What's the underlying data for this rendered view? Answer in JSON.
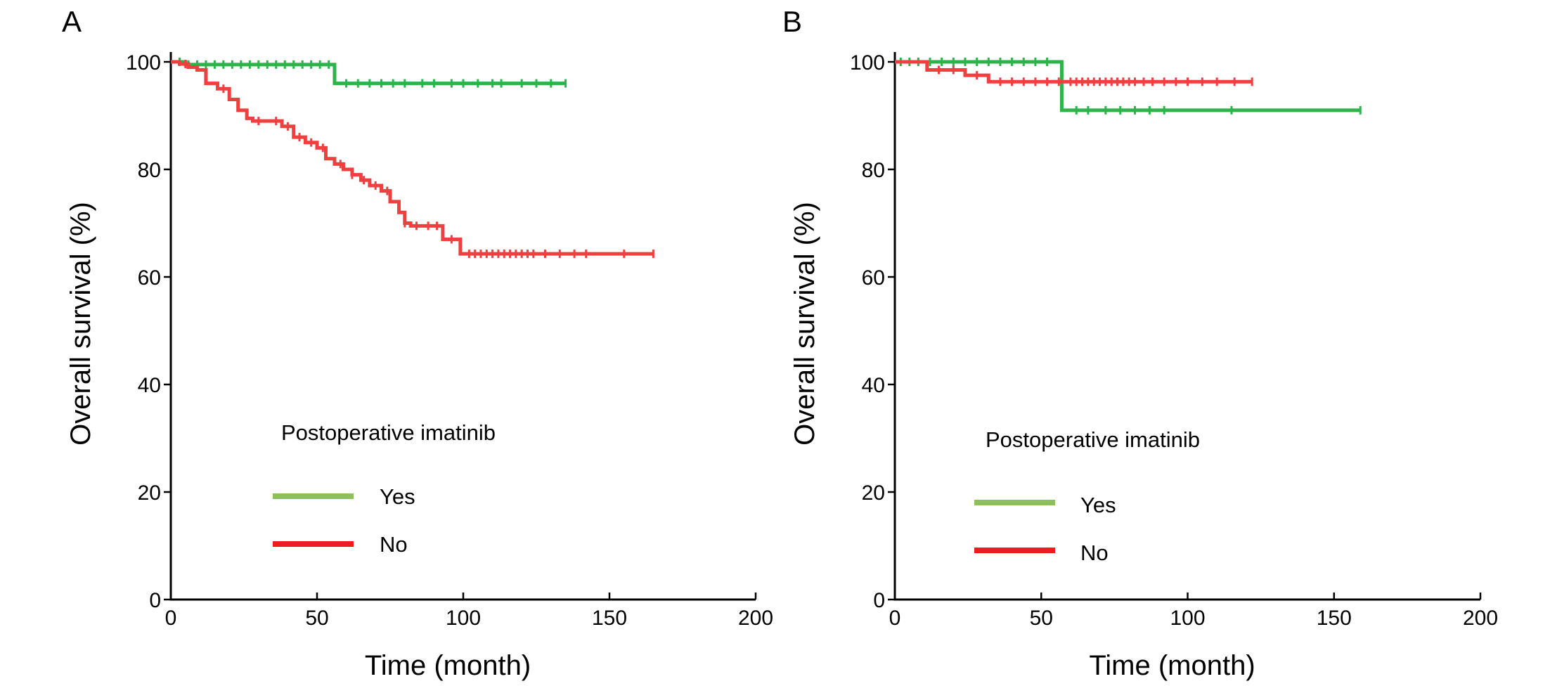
{
  "chart_data": [
    {
      "type": "line",
      "panel_label": "A",
      "xlabel": "Time (month)",
      "ylabel": "Overall survival (%)",
      "xlim": [
        0,
        200
      ],
      "ylim": [
        0,
        100
      ],
      "xticks": [
        0,
        50,
        100,
        150,
        200
      ],
      "yticks": [
        0,
        20,
        40,
        60,
        80,
        100
      ],
      "legend": {
        "title": "Postoperative imatinib",
        "placement": "center-left"
      },
      "series": [
        {
          "name": "Yes",
          "color": "#2db34a",
          "legend_color": "#8dbf5a",
          "steps": [
            [
              0,
              100
            ],
            [
              5,
              99.5
            ],
            [
              56,
              99.3
            ],
            [
              56,
              96
            ],
            [
              135,
              96
            ]
          ],
          "censor": [
            3,
            6,
            9,
            12,
            15,
            18,
            21,
            24,
            27,
            30,
            33,
            36,
            39,
            42,
            45,
            48,
            51,
            54,
            60,
            64,
            68,
            72,
            76,
            80,
            86,
            90,
            96,
            100,
            105,
            110,
            113,
            120,
            125,
            130,
            135
          ]
        },
        {
          "name": "No",
          "color": "#ef3f3f",
          "legend_color": "#ee1c1c",
          "steps": [
            [
              0,
              100
            ],
            [
              3,
              99.6
            ],
            [
              6,
              99
            ],
            [
              9,
              98.5
            ],
            [
              12,
              96
            ],
            [
              16,
              95
            ],
            [
              20,
              93
            ],
            [
              23,
              91
            ],
            [
              26,
              89.5
            ],
            [
              28,
              89
            ],
            [
              34,
              89
            ],
            [
              38,
              88
            ],
            [
              42,
              86
            ],
            [
              46,
              85
            ],
            [
              50,
              84
            ],
            [
              53,
              82
            ],
            [
              56,
              81
            ],
            [
              59,
              80
            ],
            [
              62,
              79
            ],
            [
              65,
              78
            ],
            [
              68,
              77
            ],
            [
              72,
              76
            ],
            [
              75,
              74
            ],
            [
              78,
              72
            ],
            [
              80,
              70
            ],
            [
              82,
              69.5
            ],
            [
              93,
              69.5
            ],
            [
              93,
              67
            ],
            [
              99,
              67
            ],
            [
              99,
              64.3
            ],
            [
              165,
              64.3
            ]
          ],
          "censor": [
            5,
            18,
            30,
            36,
            40,
            44,
            48,
            52,
            58,
            62,
            66,
            70,
            74,
            80,
            84,
            88,
            91,
            96,
            102,
            104,
            106,
            108,
            110,
            112,
            114,
            116,
            118,
            120,
            122,
            124,
            128,
            133,
            138,
            142,
            155,
            165
          ]
        }
      ]
    },
    {
      "type": "line",
      "panel_label": "B",
      "xlabel": "Time (month)",
      "ylabel": "Overall survival (%)",
      "xlim": [
        0,
        200
      ],
      "ylim": [
        0,
        100
      ],
      "xticks": [
        0,
        50,
        100,
        150,
        200
      ],
      "yticks": [
        0,
        20,
        40,
        60,
        80,
        100
      ],
      "legend": {
        "title": "Postoperative imatinib",
        "placement": "center-left"
      },
      "series": [
        {
          "name": "Yes",
          "color": "#2db34a",
          "legend_color": "#8dbf5a",
          "steps": [
            [
              0,
              100
            ],
            [
              57,
              100
            ],
            [
              57,
              91
            ],
            [
              159,
              91
            ]
          ],
          "censor": [
            2,
            5,
            8,
            12,
            16,
            20,
            24,
            28,
            32,
            36,
            40,
            44,
            48,
            52,
            62,
            66,
            72,
            77,
            82,
            87,
            92,
            115,
            159
          ]
        },
        {
          "name": "No",
          "color": "#ef3f3f",
          "legend_color": "#ee1c1c",
          "steps": [
            [
              0,
              100
            ],
            [
              11,
              100
            ],
            [
              11,
              98.5
            ],
            [
              24,
              98.5
            ],
            [
              24,
              97.5
            ],
            [
              32,
              97.5
            ],
            [
              32,
              96.3
            ],
            [
              122,
              96.3
            ]
          ],
          "censor": [
            15,
            20,
            28,
            36,
            40,
            44,
            48,
            52,
            56,
            60,
            62,
            64,
            66,
            68,
            70,
            72,
            74,
            76,
            78,
            80,
            82,
            85,
            88,
            92,
            96,
            100,
            105,
            110,
            116,
            122
          ]
        }
      ]
    }
  ]
}
